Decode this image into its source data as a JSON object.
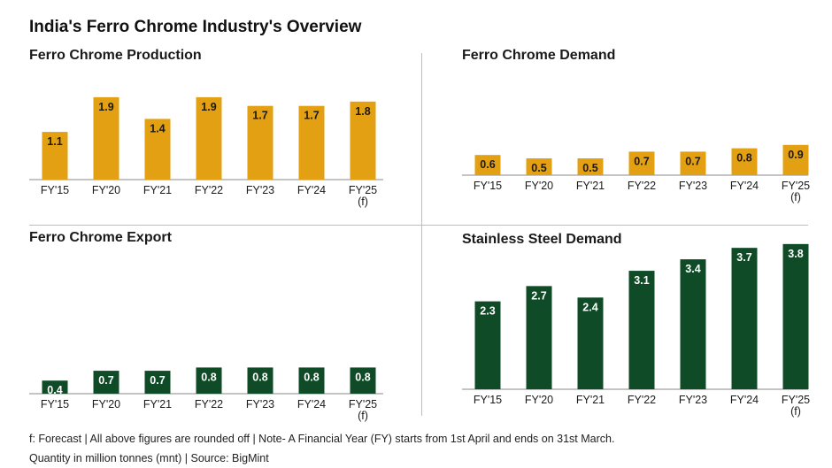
{
  "title": "India's Ferro Chrome Industry's Overview",
  "footnotes": [
    "f: Forecast | All above figures are rounded off | Note- A Financial Year (FY) starts from 1st April and ends on 31st March.",
    "Quantity in million tonnes (mnt) | Source: BigMint"
  ],
  "colors": {
    "gold": "#E3A012",
    "green": "#0E4B26"
  },
  "chart_data": [
    {
      "type": "bar",
      "title": "Ferro Chrome Production",
      "categories": [
        "FY'15",
        "FY'20",
        "FY'21",
        "FY'22",
        "FY'23",
        "FY'24",
        "FY'25 (f)"
      ],
      "values": [
        1.1,
        1.9,
        1.4,
        1.9,
        1.7,
        1.7,
        1.8
      ],
      "value_labels": [
        "1.1",
        "1.9",
        "1.4",
        "1.9",
        "1.7",
        "1.7",
        "1.8"
      ],
      "color": "#E3A012",
      "grid": false,
      "legend": "none"
    },
    {
      "type": "bar",
      "title": "Ferro Chrome Demand",
      "categories": [
        "FY'15",
        "FY'20",
        "FY'21",
        "FY'22",
        "FY'23",
        "FY'24",
        "FY'25 (f)"
      ],
      "values": [
        0.6,
        0.5,
        0.5,
        0.7,
        0.7,
        0.8,
        0.9
      ],
      "value_labels": [
        "0.6",
        "0.5",
        "0.5",
        "0.7",
        "0.7",
        "0.8",
        "0.9"
      ],
      "color": "#E3A012",
      "grid": false,
      "legend": "none"
    },
    {
      "type": "bar",
      "title": "Ferro Chrome Export",
      "categories": [
        "FY'15",
        "FY'20",
        "FY'21",
        "FY'22",
        "FY'23",
        "FY'24",
        "FY'25 (f)"
      ],
      "values": [
        0.4,
        0.7,
        0.7,
        0.8,
        0.8,
        0.8,
        0.8
      ],
      "value_labels": [
        "0.4",
        "0.7",
        "0.7",
        "0.8",
        "0.8",
        "0.8",
        "0.8"
      ],
      "color": "#0E4B26",
      "grid": false,
      "legend": "none"
    },
    {
      "type": "bar",
      "title": "Stainless Steel Demand",
      "categories": [
        "FY'15",
        "FY'20",
        "FY'21",
        "FY'22",
        "FY'23",
        "FY'24",
        "FY'25 (f)"
      ],
      "values": [
        2.3,
        2.7,
        2.4,
        3.1,
        3.4,
        3.7,
        3.8
      ],
      "value_labels": [
        "2.3",
        "2.7",
        "2.4",
        "3.1",
        "3.4",
        "3.7",
        "3.8"
      ],
      "color": "#0E4B26",
      "grid": false,
      "legend": "none"
    }
  ]
}
